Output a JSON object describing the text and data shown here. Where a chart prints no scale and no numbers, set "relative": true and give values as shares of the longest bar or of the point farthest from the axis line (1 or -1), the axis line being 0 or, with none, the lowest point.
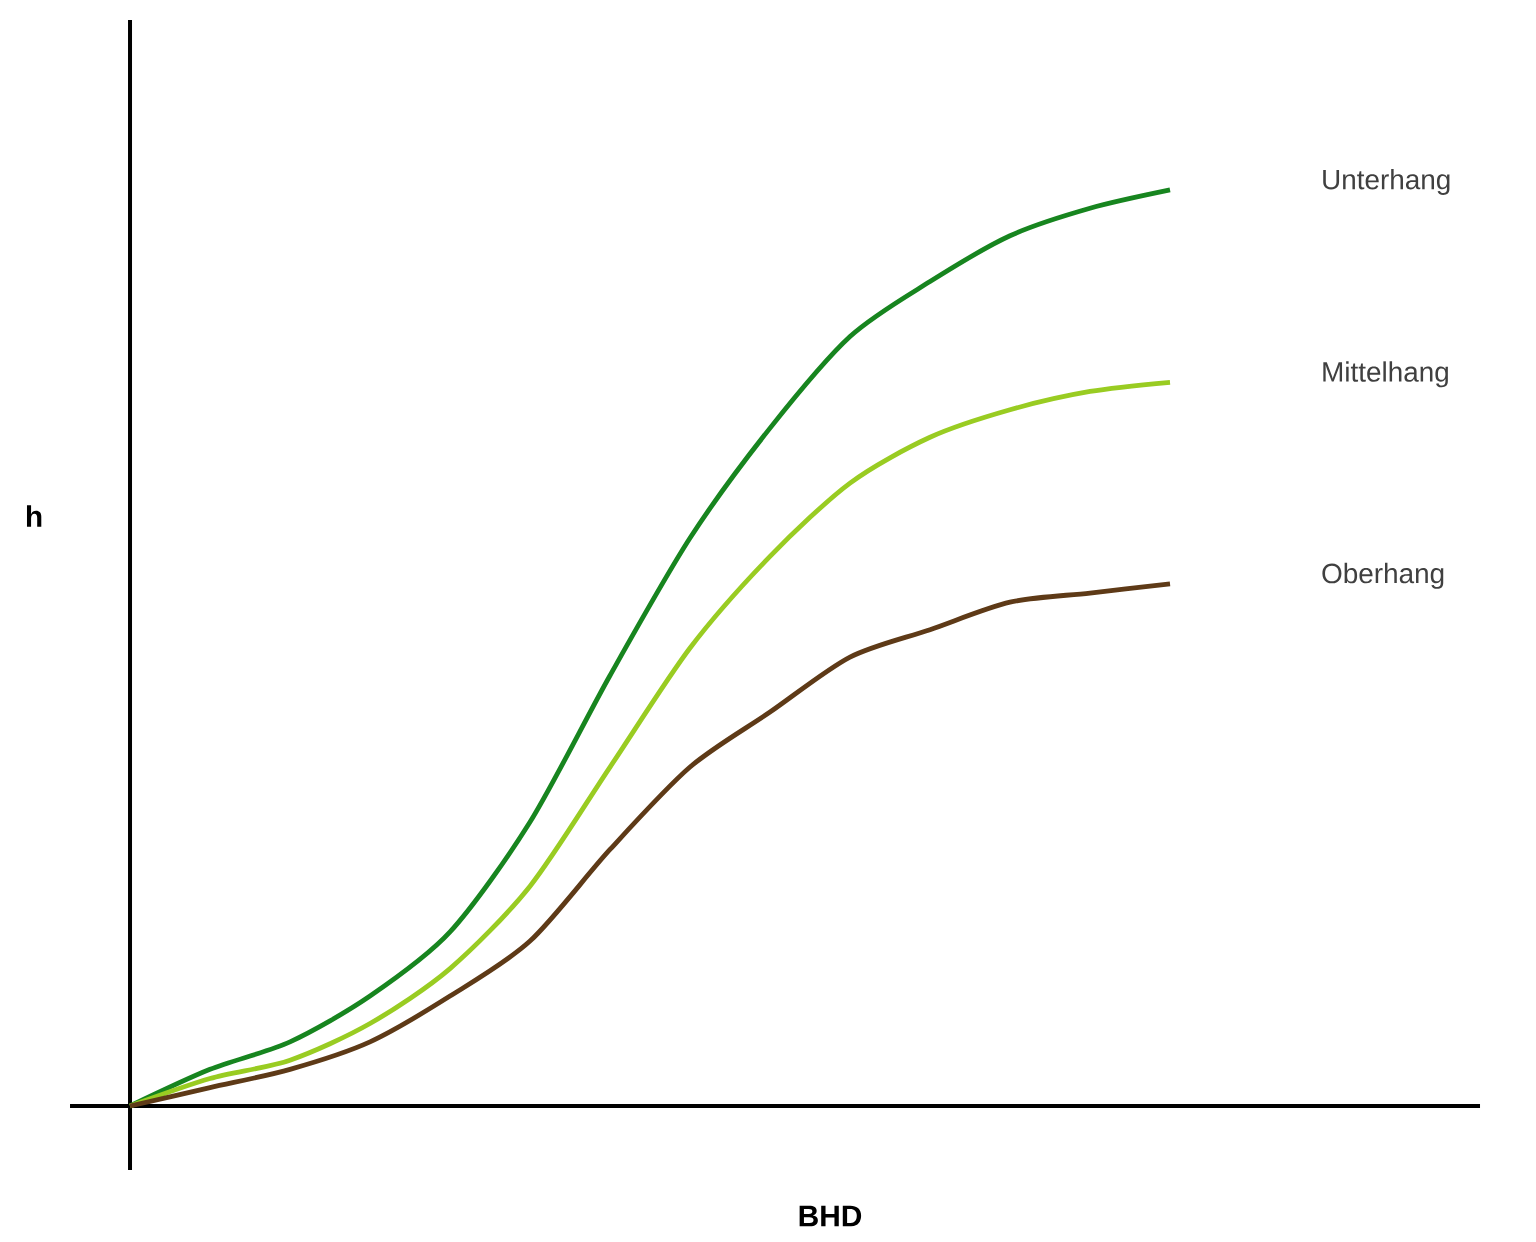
{
  "chart_data": {
    "type": "line",
    "relative": true,
    "xlabel": "BHD",
    "ylabel": "h",
    "categories": [
      null,
      null,
      null,
      null,
      null,
      null,
      null,
      null,
      null,
      null,
      null,
      null,
      null,
      null
    ],
    "series": [
      {
        "name": "Unterhang",
        "color": "#17851f",
        "values": [
          0,
          0.04,
          0.07,
          0.12,
          0.19,
          0.31,
          0.47,
          0.62,
          0.74,
          0.84,
          0.9,
          0.95,
          0.98,
          1
        ]
      },
      {
        "name": "Mittelhang",
        "color": "#99cc22",
        "values": [
          0,
          0.03,
          0.05,
          0.09,
          0.15,
          0.24,
          0.37,
          0.5,
          0.6,
          0.68,
          0.73,
          0.76,
          0.78,
          0.79
        ]
      },
      {
        "name": "Oberhang",
        "color": "#5e3a17",
        "values": [
          0,
          0.02,
          0.04,
          0.07,
          0.12,
          0.18,
          0.28,
          0.37,
          0.43,
          0.49,
          0.52,
          0.55,
          0.56,
          0.57
        ]
      }
    ]
  }
}
